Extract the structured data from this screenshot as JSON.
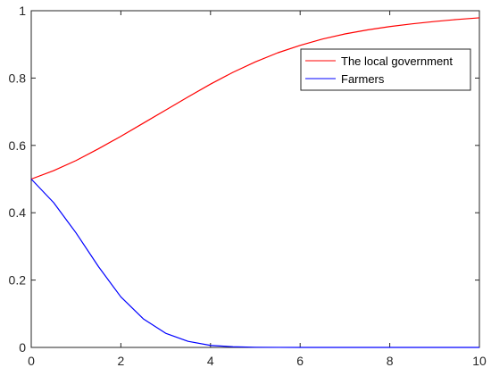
{
  "chart_data": {
    "type": "line",
    "title": "",
    "xlabel": "",
    "ylabel": "",
    "xlim": [
      0,
      10
    ],
    "ylim": [
      0,
      1
    ],
    "xticks": [
      0,
      2,
      4,
      6,
      8,
      10
    ],
    "yticks": [
      0,
      0.2,
      0.4,
      0.6,
      0.8,
      1
    ],
    "x_tick_labels": [
      "0",
      "2",
      "4",
      "6",
      "8",
      "10"
    ],
    "y_tick_labels": [
      "0",
      "0.2",
      "0.4",
      "0.6",
      "0.8",
      "1"
    ],
    "grid": false,
    "legend_position": "top-right",
    "x": [
      0,
      0.5,
      1,
      1.5,
      2,
      2.5,
      3,
      3.5,
      4,
      4.5,
      5,
      5.5,
      6,
      6.5,
      7,
      7.5,
      8,
      8.5,
      9,
      9.5,
      10
    ],
    "series": [
      {
        "name": "The local government",
        "color": "#ff0000",
        "values": [
          0.5,
          0.525,
          0.555,
          0.59,
          0.627,
          0.666,
          0.705,
          0.744,
          0.782,
          0.817,
          0.848,
          0.875,
          0.897,
          0.916,
          0.931,
          0.943,
          0.953,
          0.961,
          0.968,
          0.974,
          0.979
        ]
      },
      {
        "name": "Farmers",
        "color": "#0000ff",
        "values": [
          0.5,
          0.43,
          0.34,
          0.24,
          0.15,
          0.085,
          0.042,
          0.018,
          0.006,
          0.002,
          0.0005,
          0.0001,
          0,
          0,
          0,
          0,
          0,
          0,
          0,
          0,
          0
        ]
      }
    ]
  }
}
